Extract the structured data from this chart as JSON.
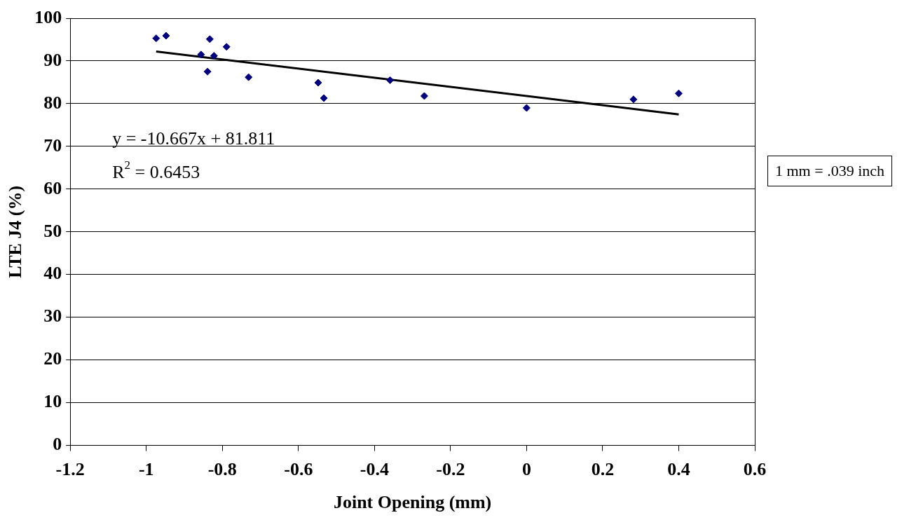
{
  "chart_data": {
    "type": "scatter",
    "xlabel": "Joint Opening (mm)",
    "ylabel": "LTE J4 (%)",
    "xlim": [
      -1.2,
      0.6
    ],
    "xticks": [
      -1.2,
      -1,
      -0.8,
      -0.6,
      -0.4,
      -0.2,
      0,
      0.2,
      0.4,
      0.6
    ],
    "ylim": [
      0,
      100
    ],
    "yticks": [
      0,
      10,
      20,
      30,
      40,
      50,
      60,
      70,
      80,
      90,
      100
    ],
    "grid": "y",
    "legend": false,
    "series": [
      {
        "marker": "diamond",
        "color": "#000080",
        "x": [
          -0.974,
          -0.948,
          -0.856,
          -0.833,
          -0.839,
          -0.822,
          -0.789,
          -0.731,
          -0.548,
          -0.533,
          -0.359,
          -0.269,
          0,
          0.281,
          0.4
        ],
        "values": [
          95.3,
          95.9,
          91.5,
          95.1,
          87.5,
          91.2,
          93.3,
          86.2,
          84.9,
          81.3,
          85.5,
          81.8,
          79.0,
          81.0,
          82.4
        ]
      },
      {
        "type": "line",
        "marker": "none",
        "color": "#000000",
        "x": [
          -0.974,
          0.4
        ],
        "values": [
          92.2,
          77.5
        ]
      }
    ],
    "annotations": [
      "y = -10.667x + 81.811",
      "R$^{2}$ = 0.6453",
      "1 mm = .039 inch"
    ]
  }
}
